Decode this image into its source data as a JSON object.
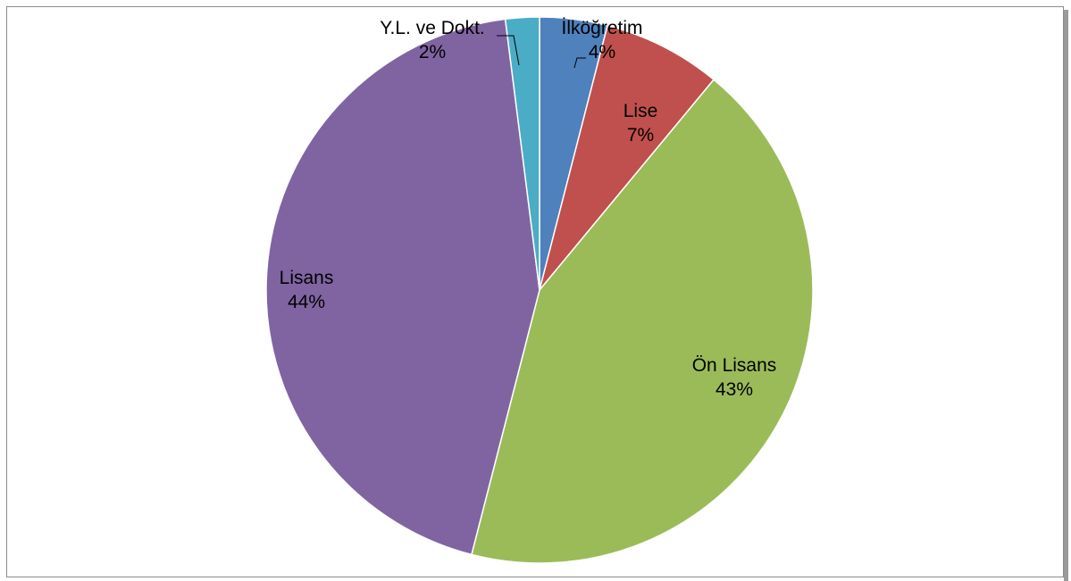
{
  "chart_data": {
    "type": "pie",
    "categories": [
      "İlköğretim",
      "Lise",
      "Ön Lisans",
      "Lisans",
      "Y.L. ve Dokt."
    ],
    "values": [
      4,
      7,
      43,
      44,
      2
    ],
    "labels": [
      {
        "category": "İlköğretim",
        "percent": "4%"
      },
      {
        "category": "Lise",
        "percent": "7%"
      },
      {
        "category": "Ön Lisans",
        "percent": "43%"
      },
      {
        "category": "Lisans",
        "percent": "44%"
      },
      {
        "category": "Y.L. ve Dokt.",
        "percent": "2%"
      }
    ],
    "colors": [
      "#4f81bd",
      "#c0504d",
      "#9bbb59",
      "#8064a2",
      "#4bacc6"
    ],
    "legend": "none",
    "title": ""
  }
}
